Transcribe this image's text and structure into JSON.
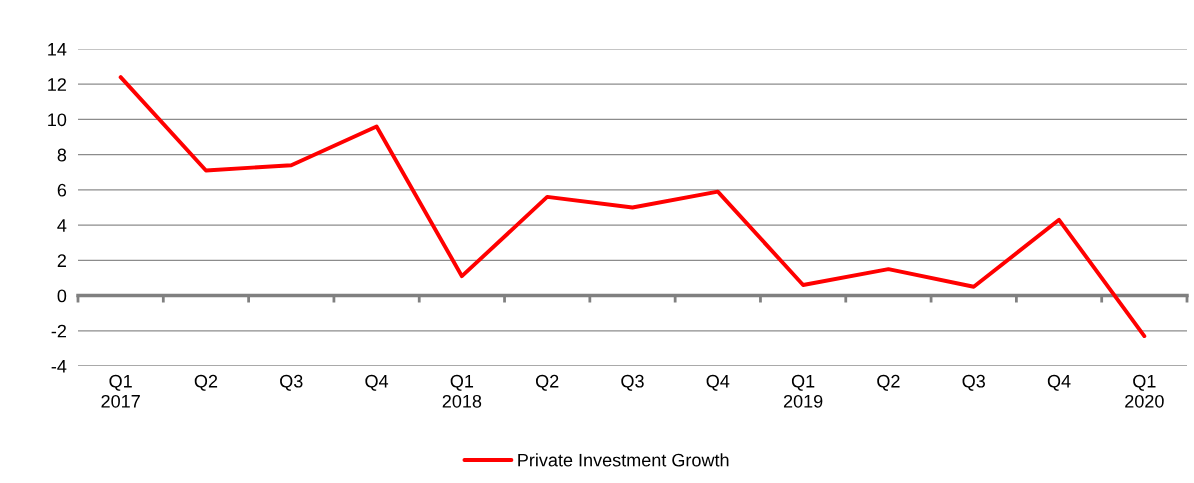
{
  "chart_data": {
    "type": "line",
    "categories": [
      "Q1\n2017",
      "Q2",
      "Q3",
      "Q4",
      "Q1\n2018",
      "Q2",
      "Q3",
      "Q4",
      "Q1\n2019",
      "Q2",
      "Q3",
      "Q4",
      "Q1\n2020"
    ],
    "series": [
      {
        "name": "Private Investment Growth",
        "color": "#ff0000",
        "values": [
          12.4,
          7.1,
          7.4,
          9.6,
          1.1,
          5.6,
          5.0,
          5.9,
          0.6,
          1.5,
          0.5,
          4.3,
          -2.3
        ]
      }
    ],
    "ylim": [
      -4,
      14
    ],
    "yticks": [
      -4,
      -2,
      0,
      2,
      4,
      6,
      8,
      10,
      12,
      14
    ],
    "grid": "y",
    "legend": "bottom",
    "marker": "none",
    "line_style": "solid"
  }
}
